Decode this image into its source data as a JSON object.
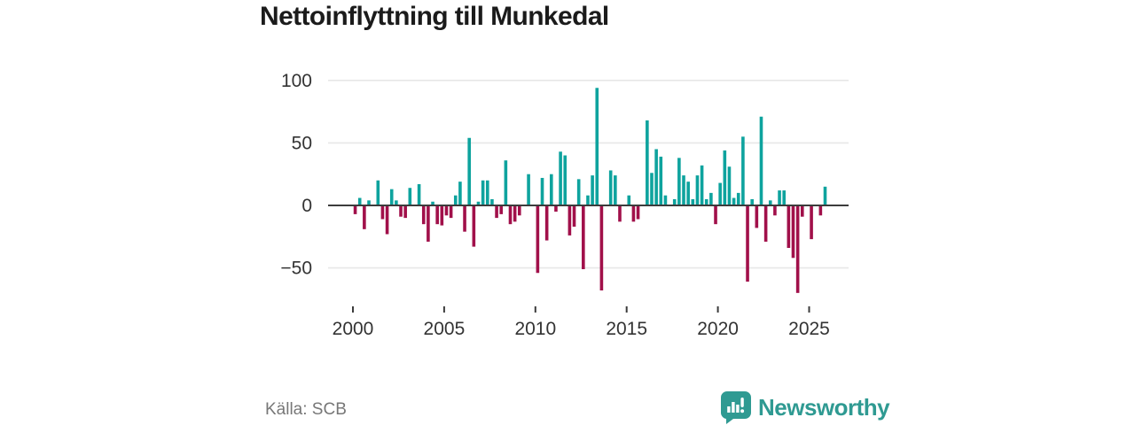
{
  "title": "Nettoinflyttning till Munkedal",
  "source": "Källa: SCB",
  "brand": {
    "name": "Newsworthy"
  },
  "colors": {
    "positive": "#0ea39e",
    "negative": "#a1104a",
    "axis": "#3c3c3c",
    "grid": "#e7e7e7",
    "tick_text": "#333333",
    "title_text": "#1b1b1b",
    "muted_text": "#777777",
    "brand_teal": "#2f9a92",
    "background": "#ffffff"
  },
  "chart_data": {
    "type": "bar",
    "title": "Nettoinflyttning till Munkedal",
    "xlabel": "",
    "ylabel": "",
    "frequency": "quarterly",
    "start": "2000 Q1",
    "end": "2025 Q4",
    "per_year": 4,
    "start_year": 2000,
    "grid": true,
    "legend": false,
    "ylim": [
      -78,
      108
    ],
    "y_ticks": [
      {
        "value": 100,
        "label": "100"
      },
      {
        "value": 50,
        "label": "50"
      },
      {
        "value": 0,
        "label": "0"
      },
      {
        "value": -50,
        "label": "−50"
      }
    ],
    "x_ticks": [
      {
        "year": 2000,
        "label": "2000"
      },
      {
        "year": 2005,
        "label": "2005"
      },
      {
        "year": 2010,
        "label": "2010"
      },
      {
        "year": 2015,
        "label": "2015"
      },
      {
        "year": 2020,
        "label": "2020"
      },
      {
        "year": 2025,
        "label": "2025"
      }
    ],
    "values": [
      -7,
      6,
      -19,
      4,
      0,
      20,
      -11,
      -23,
      13,
      4,
      -9,
      -10,
      14,
      0,
      17,
      -15,
      -29,
      3,
      -15,
      -16,
      -8,
      -10,
      8,
      19,
      -21,
      54,
      -33,
      3,
      20,
      20,
      5,
      -10,
      -7,
      36,
      -15,
      -13,
      -8,
      0,
      25,
      0,
      -54,
      22,
      -28,
      25,
      -5,
      43,
      40,
      -24,
      -17,
      21,
      -51,
      8,
      24,
      94,
      -68,
      0,
      28,
      24,
      -13,
      0,
      8,
      -13,
      -11,
      0,
      68,
      26,
      45,
      39,
      8,
      0,
      5,
      38,
      24,
      19,
      5,
      24,
      32,
      5,
      10,
      -15,
      18,
      44,
      31,
      6,
      10,
      55,
      -61,
      5,
      -18,
      71,
      -29,
      4,
      -8,
      12,
      12,
      -34,
      -42,
      -70,
      -9,
      0,
      -27,
      0,
      -8,
      15
    ]
  }
}
